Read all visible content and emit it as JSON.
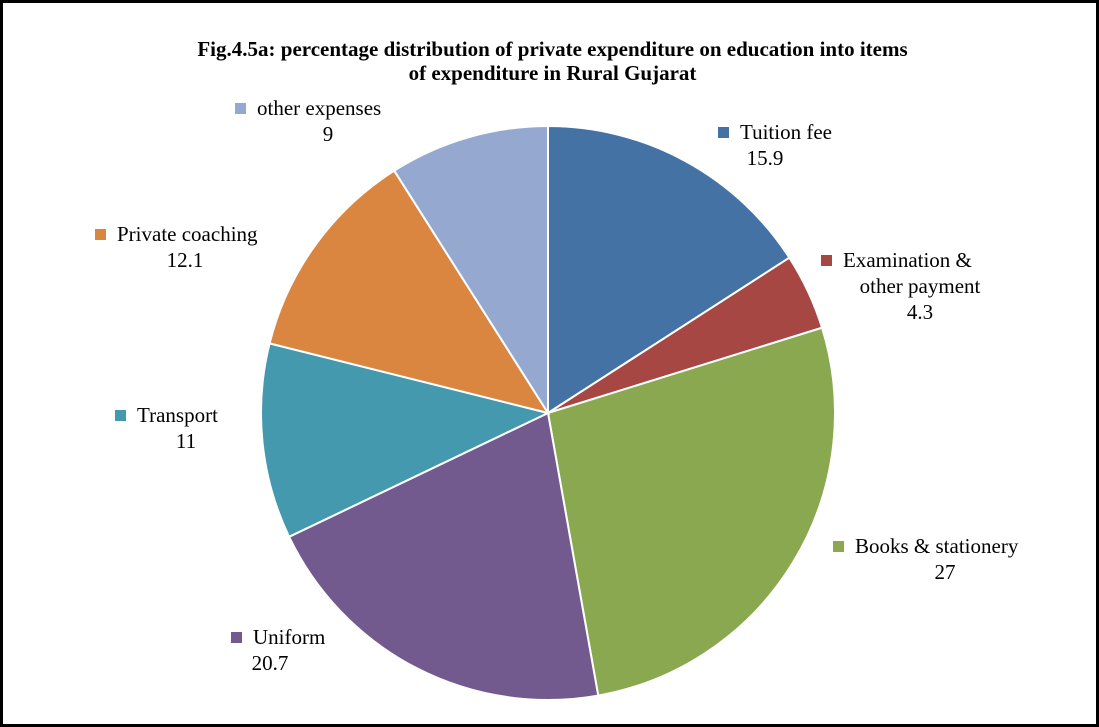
{
  "chart_data": {
    "type": "pie",
    "title": [
      "Fig.4.5a: percentage distribution of private expenditure on education into items",
      "of expenditure in Rural Gujarat"
    ],
    "series": [
      {
        "name": "Tuition fee",
        "label_lines": [
          "Tuition fee"
        ],
        "value": 15.9,
        "value_text": "15.9",
        "color": "#4472a4"
      },
      {
        "name": "Examination & other payment",
        "label_lines": [
          "Examination &",
          "other payment"
        ],
        "value": 4.3,
        "value_text": "4.3",
        "color": "#a74744"
      },
      {
        "name": "Books & stationery",
        "label_lines": [
          "Books & stationery"
        ],
        "value": 27,
        "value_text": "27",
        "color": "#89a84f"
      },
      {
        "name": "Uniform",
        "label_lines": [
          "Uniform"
        ],
        "value": 20.7,
        "value_text": "20.7",
        "color": "#725a8f"
      },
      {
        "name": "Transport",
        "label_lines": [
          "Transport"
        ],
        "value": 11,
        "value_text": "11",
        "color": "#4499af"
      },
      {
        "name": "Private coaching",
        "label_lines": [
          "Private coaching"
        ],
        "value": 12.1,
        "value_text": "12.1",
        "color": "#db8640"
      },
      {
        "name": "other expenses",
        "label_lines": [
          "other expenses"
        ],
        "value": 9,
        "value_text": "9",
        "color": "#95a9d0"
      }
    ],
    "legend": "labels beside slices"
  }
}
